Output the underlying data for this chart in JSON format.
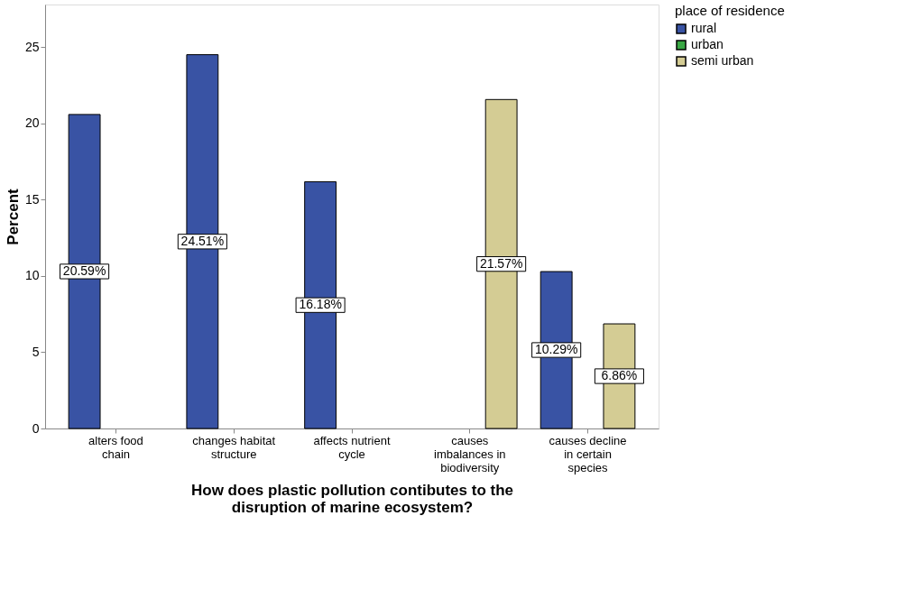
{
  "chart_data": {
    "type": "bar",
    "xlabel": "How does plastic pollution contibutes to the\ndisruption of marine ecosystem?",
    "ylabel": "Percent",
    "legend_title": "place of residence",
    "categories": [
      "alters food chain",
      "changes habitat structure",
      "affects nutrient cycle",
      "causes imbalances in biodiversity",
      "causes decline in certain species"
    ],
    "series": [
      {
        "name": "rural",
        "color": "#3953a4",
        "values": [
          20.59,
          24.51,
          16.18,
          null,
          10.29
        ],
        "value_labels": [
          "20.59%",
          "24.51%",
          "16.18%",
          null,
          "10.29%"
        ]
      },
      {
        "name": "urban",
        "color": "#3aa845",
        "values": [
          null,
          null,
          null,
          null,
          null
        ]
      },
      {
        "name": "semi urban",
        "color": "#d4cc94",
        "values": [
          null,
          null,
          null,
          21.57,
          6.86
        ],
        "value_labels": [
          null,
          null,
          null,
          "21.57%",
          "6.86%"
        ]
      }
    ],
    "ylim": [
      0,
      27.8
    ],
    "yticks": [
      0,
      5,
      10,
      15,
      20,
      25
    ],
    "grid": false,
    "legend": "top right"
  }
}
